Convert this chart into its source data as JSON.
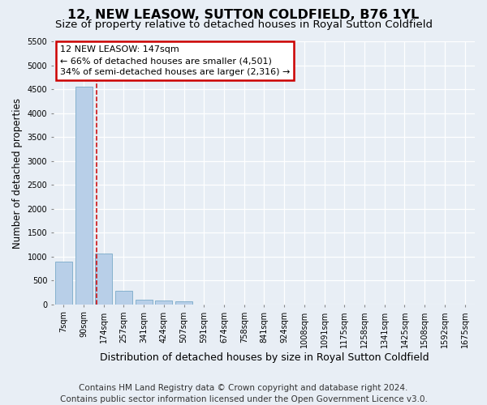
{
  "title": "12, NEW LEASOW, SUTTON COLDFIELD, B76 1YL",
  "subtitle": "Size of property relative to detached houses in Royal Sutton Coldfield",
  "xlabel": "Distribution of detached houses by size in Royal Sutton Coldfield",
  "ylabel": "Number of detached properties",
  "footer_line1": "Contains HM Land Registry data © Crown copyright and database right 2024.",
  "footer_line2": "Contains public sector information licensed under the Open Government Licence v3.0.",
  "bar_labels": [
    "7sqm",
    "90sqm",
    "174sqm",
    "257sqm",
    "341sqm",
    "424sqm",
    "507sqm",
    "591sqm",
    "674sqm",
    "758sqm",
    "841sqm",
    "924sqm",
    "1008sqm",
    "1091sqm",
    "1175sqm",
    "1258sqm",
    "1341sqm",
    "1425sqm",
    "1508sqm",
    "1592sqm",
    "1675sqm"
  ],
  "bar_values": [
    890,
    4560,
    1060,
    290,
    90,
    80,
    60,
    0,
    0,
    0,
    0,
    0,
    0,
    0,
    0,
    0,
    0,
    0,
    0,
    0,
    0
  ],
  "bar_color": "#b8cfe8",
  "bar_edge_color": "#7aaac8",
  "annotation_text_line1": "12 NEW LEASOW: 147sqm",
  "annotation_text_line2": "← 66% of detached houses are smaller (4,501)",
  "annotation_text_line3": "34% of semi-detached houses are larger (2,316) →",
  "annotation_box_facecolor": "#ffffff",
  "annotation_box_edgecolor": "#cc0000",
  "vline_color": "#cc0000",
  "vline_x": 1.63,
  "ylim": [
    0,
    5500
  ],
  "yticks": [
    0,
    500,
    1000,
    1500,
    2000,
    2500,
    3000,
    3500,
    4000,
    4500,
    5000,
    5500
  ],
  "background_color": "#e8eef5",
  "plot_background_color": "#e8eef5",
  "grid_color": "#ffffff",
  "title_fontsize": 11.5,
  "subtitle_fontsize": 9.5,
  "ylabel_fontsize": 8.5,
  "xlabel_fontsize": 9,
  "tick_fontsize": 7,
  "annotation_fontsize": 8,
  "footer_fontsize": 7.5
}
